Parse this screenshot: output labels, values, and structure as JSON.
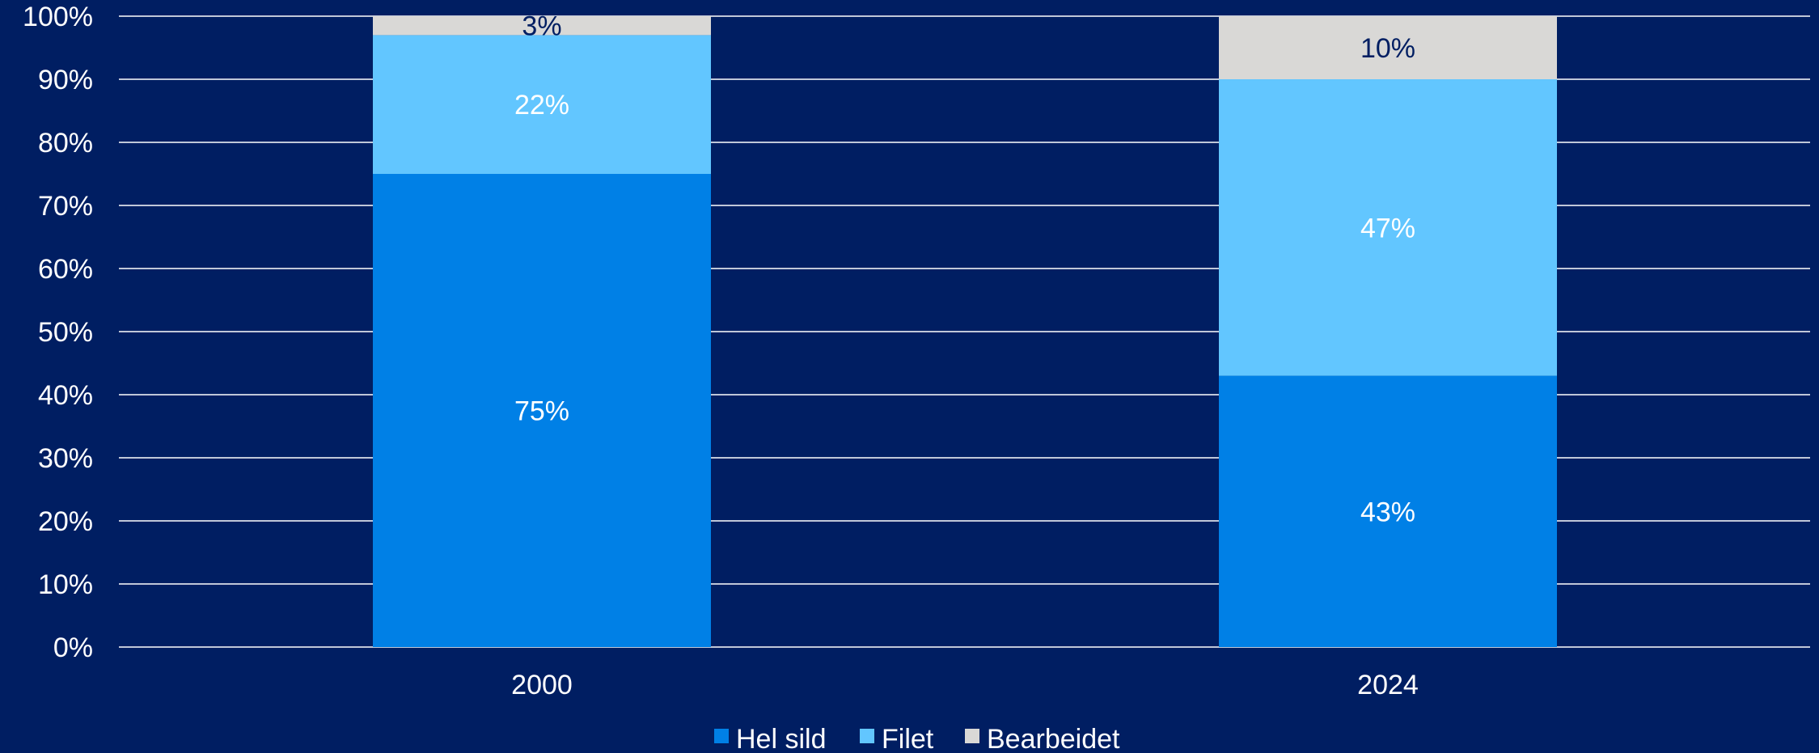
{
  "chart_data": {
    "type": "bar",
    "stacked": true,
    "categories": [
      "2000",
      "2024"
    ],
    "series": [
      {
        "name": "Hel sild",
        "values": [
          75,
          43
        ],
        "labels": [
          "75%",
          "43%"
        ],
        "color": "#0080e6",
        "label_color": "#ffffff"
      },
      {
        "name": "Filet",
        "values": [
          22,
          47
        ],
        "labels": [
          "22%",
          "47%"
        ],
        "color": "#62c6ff",
        "label_color": "#ffffff"
      },
      {
        "name": "Bearbeidet",
        "values": [
          3,
          10
        ],
        "labels": [
          "3%",
          "10%"
        ],
        "color": "#d9d8d6",
        "label_color": "#001e62"
      }
    ],
    "y_ticks": [
      "0%",
      "10%",
      "20%",
      "30%",
      "40%",
      "50%",
      "60%",
      "70%",
      "80%",
      "90%",
      "100%"
    ],
    "ylim": [
      0,
      100
    ],
    "grid": true,
    "legend": "bottom",
    "colors": {
      "background": "#001e62",
      "gridline": "#ffffff",
      "text": "#ffffff"
    }
  }
}
